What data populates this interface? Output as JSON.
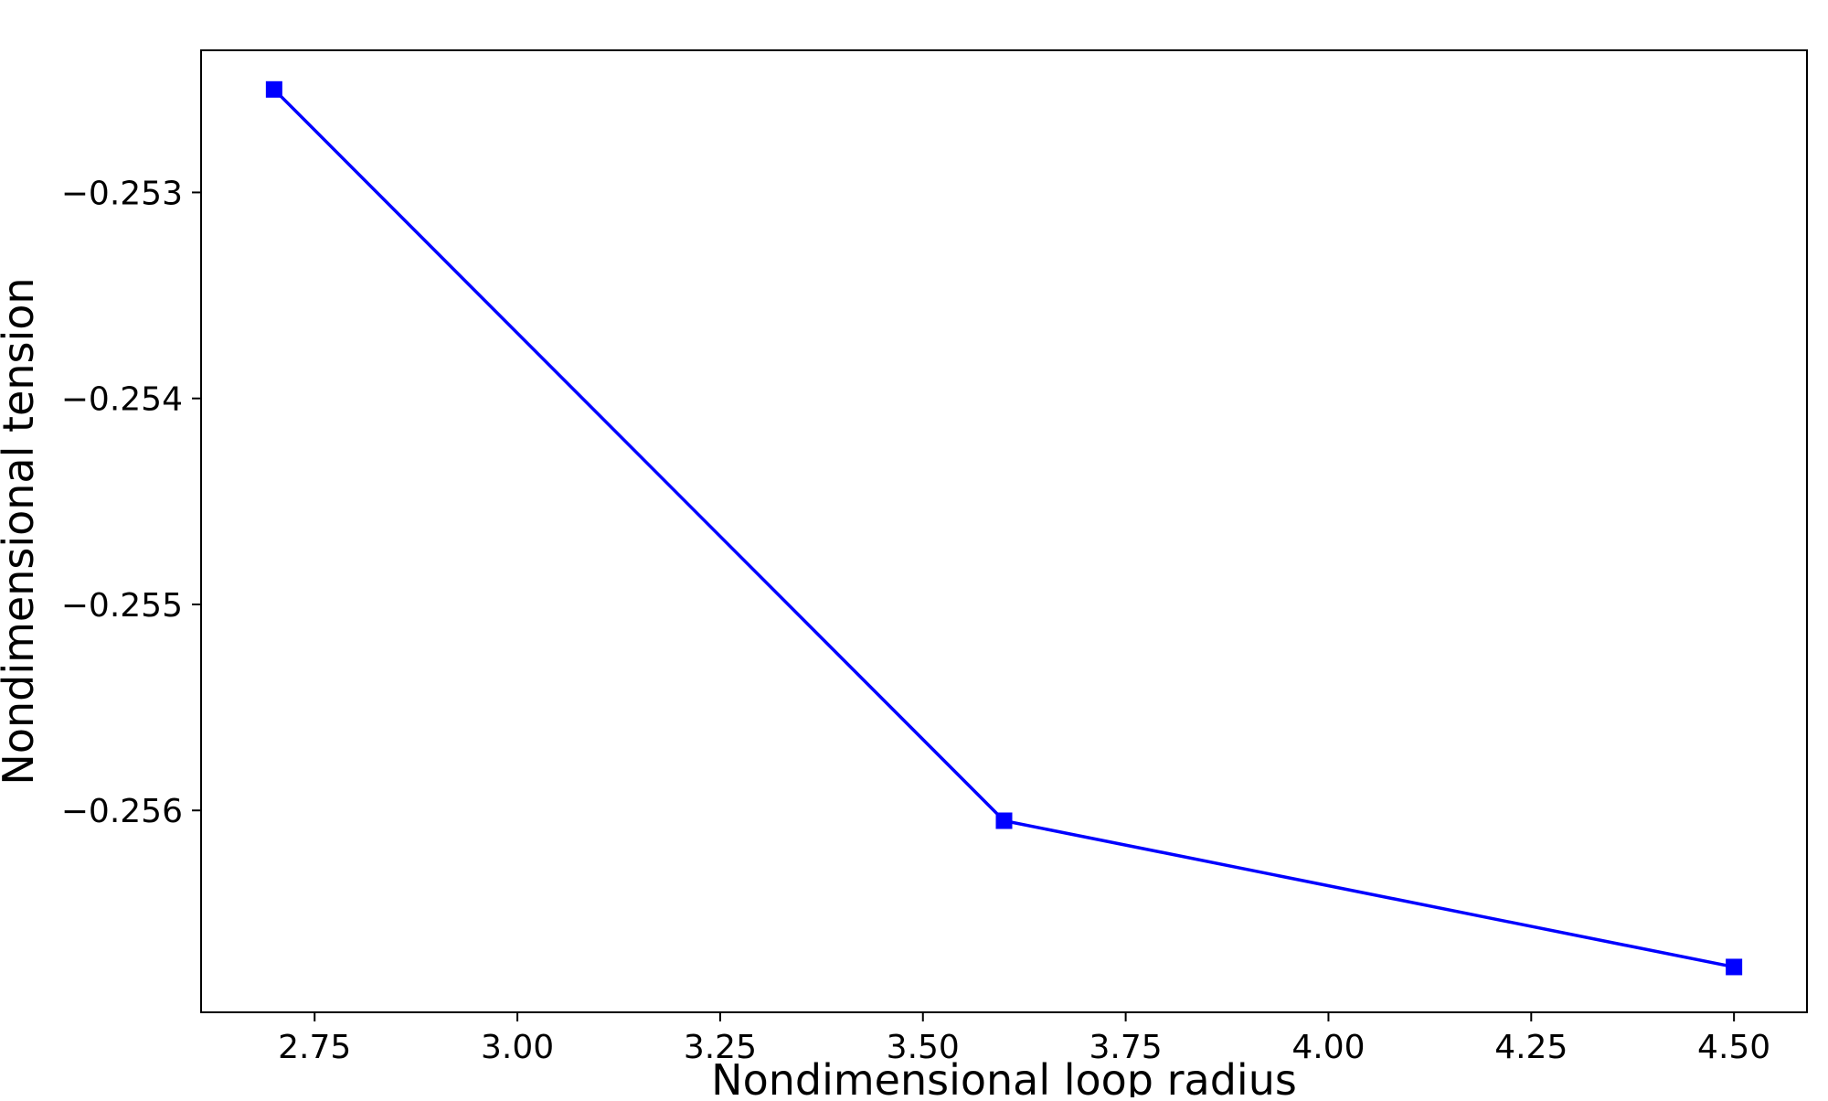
{
  "chart_data": {
    "type": "line",
    "title": "",
    "xlabel": "Nondimensional loop radius",
    "ylabel": "Nondimensional tension",
    "xlim": [
      2.61,
      4.59
    ],
    "ylim": [
      -0.25698,
      -0.25231
    ],
    "x_ticks": [
      2.75,
      3.0,
      3.25,
      3.5,
      3.75,
      4.0,
      4.25,
      4.5
    ],
    "x_tick_labels": [
      "2.75",
      "3.00",
      "3.25",
      "3.50",
      "3.75",
      "4.00",
      "4.25",
      "4.50"
    ],
    "y_ticks": [
      -0.253,
      -0.254,
      -0.255,
      -0.256
    ],
    "y_tick_labels": [
      "−0.253",
      "−0.254",
      "−0.255",
      "−0.256"
    ],
    "grid": false,
    "series": [
      {
        "x": [
          2.7,
          3.6,
          4.5
        ],
        "y": [
          -0.2525,
          -0.25605,
          -0.25676
        ],
        "color": "#0000ff",
        "marker": "square"
      }
    ]
  }
}
